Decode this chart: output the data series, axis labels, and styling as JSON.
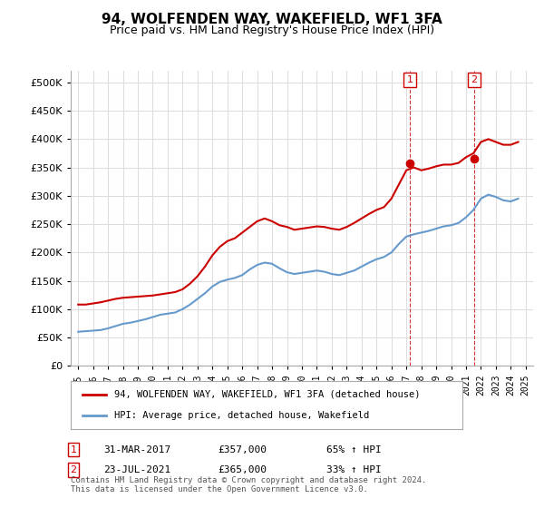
{
  "title": "94, WOLFENDEN WAY, WAKEFIELD, WF1 3FA",
  "subtitle": "Price paid vs. HM Land Registry's House Price Index (HPI)",
  "legend_line1": "94, WOLFENDEN WAY, WAKEFIELD, WF1 3FA (detached house)",
  "legend_line2": "HPI: Average price, detached house, Wakefield",
  "annotation1_label": "1",
  "annotation1_date": "31-MAR-2017",
  "annotation1_price": "£357,000",
  "annotation1_hpi": "65% ↑ HPI",
  "annotation2_label": "2",
  "annotation2_date": "23-JUL-2021",
  "annotation2_price": "£365,000",
  "annotation2_hpi": "33% ↑ HPI",
  "footer": "Contains HM Land Registry data © Crown copyright and database right 2024.\nThis data is licensed under the Open Government Licence v3.0.",
  "red_color": "#cc0000",
  "blue_color": "#6699cc",
  "annotation_color": "#cc0000",
  "background_color": "#ffffff",
  "grid_color": "#dddddd",
  "ylim": [
    0,
    520000
  ],
  "yticks": [
    0,
    50000,
    100000,
    150000,
    200000,
    250000,
    300000,
    350000,
    400000,
    450000,
    500000
  ],
  "red_x": [
    1995.0,
    1995.5,
    1996.0,
    1996.5,
    1997.0,
    1997.5,
    1998.0,
    1998.5,
    1999.0,
    1999.5,
    2000.0,
    2000.5,
    2001.0,
    2001.5,
    2002.0,
    2002.5,
    2003.0,
    2003.5,
    2004.0,
    2004.5,
    2005.0,
    2005.5,
    2006.0,
    2006.5,
    2007.0,
    2007.5,
    2008.0,
    2008.5,
    2009.0,
    2009.5,
    2010.0,
    2010.5,
    2011.0,
    2011.5,
    2012.0,
    2012.5,
    2013.0,
    2013.5,
    2014.0,
    2014.5,
    2015.0,
    2015.5,
    2016.0,
    2016.5,
    2017.0,
    2017.5,
    2018.0,
    2018.5,
    2019.0,
    2019.5,
    2020.0,
    2020.5,
    2021.0,
    2021.5,
    2022.0,
    2022.5,
    2023.0,
    2023.5,
    2024.0,
    2024.5
  ],
  "red_y": [
    108000,
    108000,
    110000,
    112000,
    115000,
    118000,
    120000,
    121000,
    122000,
    123000,
    124000,
    126000,
    128000,
    130000,
    135000,
    145000,
    158000,
    175000,
    195000,
    210000,
    220000,
    225000,
    235000,
    245000,
    255000,
    260000,
    255000,
    248000,
    245000,
    240000,
    242000,
    244000,
    246000,
    245000,
    242000,
    240000,
    245000,
    252000,
    260000,
    268000,
    275000,
    280000,
    295000,
    320000,
    345000,
    350000,
    345000,
    348000,
    352000,
    355000,
    355000,
    358000,
    368000,
    375000,
    395000,
    400000,
    395000,
    390000,
    390000,
    395000
  ],
  "blue_x": [
    1995.0,
    1995.5,
    1996.0,
    1996.5,
    1997.0,
    1997.5,
    1998.0,
    1998.5,
    1999.0,
    1999.5,
    2000.0,
    2000.5,
    2001.0,
    2001.5,
    2002.0,
    2002.5,
    2003.0,
    2003.5,
    2004.0,
    2004.5,
    2005.0,
    2005.5,
    2006.0,
    2006.5,
    2007.0,
    2007.5,
    2008.0,
    2008.5,
    2009.0,
    2009.5,
    2010.0,
    2010.5,
    2011.0,
    2011.5,
    2012.0,
    2012.5,
    2013.0,
    2013.5,
    2014.0,
    2014.5,
    2015.0,
    2015.5,
    2016.0,
    2016.5,
    2017.0,
    2017.5,
    2018.0,
    2018.5,
    2019.0,
    2019.5,
    2020.0,
    2020.5,
    2021.0,
    2021.5,
    2022.0,
    2022.5,
    2023.0,
    2023.5,
    2024.0,
    2024.5
  ],
  "blue_y": [
    60000,
    61000,
    62000,
    63000,
    66000,
    70000,
    74000,
    76000,
    79000,
    82000,
    86000,
    90000,
    92000,
    94000,
    100000,
    108000,
    118000,
    128000,
    140000,
    148000,
    152000,
    155000,
    160000,
    170000,
    178000,
    182000,
    180000,
    172000,
    165000,
    162000,
    164000,
    166000,
    168000,
    166000,
    162000,
    160000,
    164000,
    168000,
    175000,
    182000,
    188000,
    192000,
    200000,
    215000,
    228000,
    232000,
    235000,
    238000,
    242000,
    246000,
    248000,
    252000,
    262000,
    275000,
    295000,
    302000,
    298000,
    292000,
    290000,
    295000
  ],
  "marker1_x": 2017.25,
  "marker1_y": 357000,
  "marker2_x": 2021.55,
  "marker2_y": 365000,
  "vline1_x": 2017.25,
  "vline2_x": 2021.55,
  "xmin": 1994.5,
  "xmax": 2025.5
}
